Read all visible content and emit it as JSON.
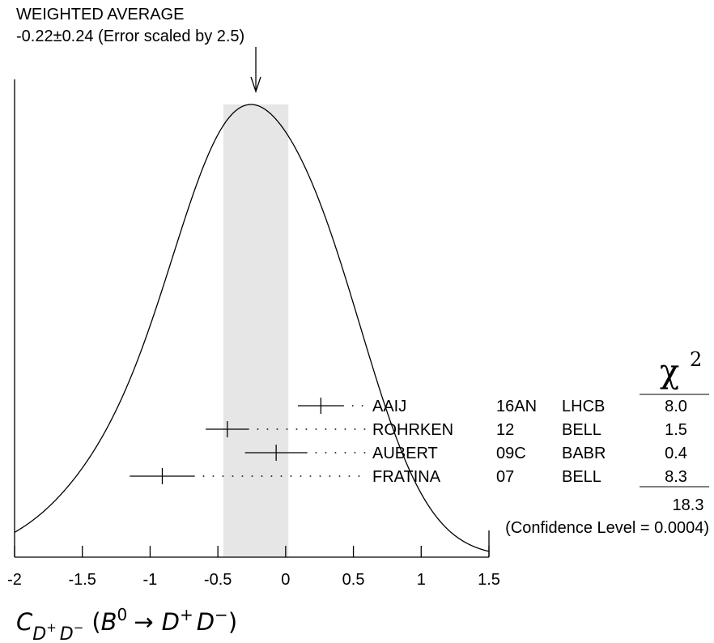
{
  "chart_data": {
    "type": "ideogram",
    "title": "WEIGHTED AVERAGE",
    "subtitle": "-0.22±0.24 (Error scaled by 2.5)",
    "weighted_average": {
      "value": -0.22,
      "band": [
        -0.46,
        0.02
      ]
    },
    "xlim": [
      -2,
      1.5
    ],
    "xticks": [
      "-2",
      "-1.5",
      "-1",
      "-0.5",
      "0",
      "0.5",
      "1",
      "1.5"
    ],
    "xlabel": {
      "c_base": "C",
      "c_sub": "D",
      "c_sub_sup1": "+",
      "c_sub_D2": "D",
      "c_sub_sup2": "−",
      "open": "(",
      "B": "B",
      "B_sup": "0",
      "arrow": "→",
      "D1": "D",
      "D1_sup": "+",
      "D2": "D",
      "D2_sup": "−",
      "close": ")"
    },
    "chi2_header": {
      "symbol": "χ",
      "sup": "2"
    },
    "measurements": [
      {
        "author": "AAIJ",
        "year": "16AN",
        "experiment": "LHCB",
        "value": 0.26,
        "error": 0.17,
        "chi2": "8.0"
      },
      {
        "author": "ROHRKEN",
        "year": "12",
        "experiment": "BELL",
        "value": -0.43,
        "error": 0.16,
        "chi2": "1.5"
      },
      {
        "author": "AUBERT",
        "year": "09C",
        "experiment": "BABR",
        "value": -0.07,
        "error": 0.23,
        "chi2": "0.4"
      },
      {
        "author": "FRATINA",
        "year": "07",
        "experiment": "BELL",
        "value": -0.91,
        "error": 0.24,
        "chi2": "8.3"
      }
    ],
    "chi2_total": "18.3",
    "confidence_level": "(Confidence Level = 0.0004)"
  }
}
